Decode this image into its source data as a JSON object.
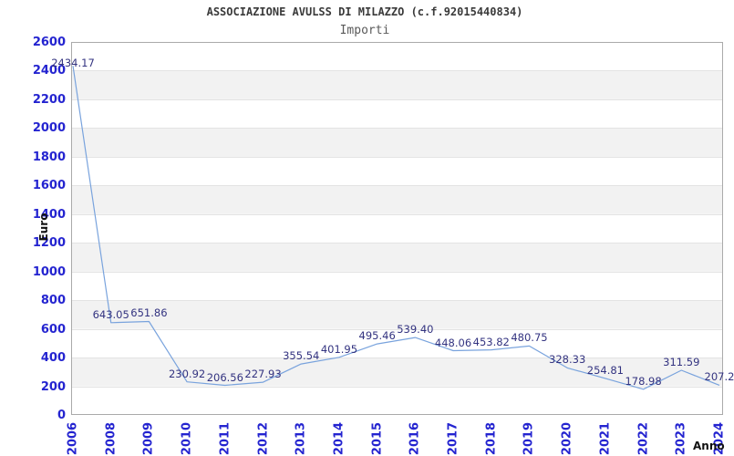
{
  "header": {
    "title": "ASSOCIAZIONE AVULSS DI MILAZZO (c.f.92015440834)",
    "subtitle": "Importi"
  },
  "chart_data": {
    "type": "line",
    "title": "ASSOCIAZIONE AVULSS DI MILAZZO (c.f.92015440834)",
    "subtitle": "Importi",
    "xlabel": "Anno",
    "ylabel": "Euro",
    "categories": [
      "2006",
      "2008",
      "2009",
      "2010",
      "2011",
      "2012",
      "2013",
      "2014",
      "2015",
      "2016",
      "2017",
      "2018",
      "2019",
      "2020",
      "2021",
      "2022",
      "2023",
      "2024"
    ],
    "values": [
      2434.17,
      643.05,
      651.86,
      230.92,
      206.56,
      227.93,
      355.54,
      401.95,
      495.46,
      539.4,
      448.06,
      453.82,
      480.75,
      328.33,
      254.81,
      178.98,
      311.59,
      207.2
    ],
    "point_labels": [
      "2434.17",
      "643.05",
      "651.86",
      "230.92",
      "206.56",
      "227.93",
      "355.54",
      "401.95",
      "495.46",
      "539.40",
      "448.06",
      "453.82",
      "480.75",
      "328.33",
      "254.81",
      "178.98",
      "311.59",
      "207.2"
    ],
    "yticks": [
      0,
      200,
      400,
      600,
      800,
      1000,
      1200,
      1400,
      1600,
      1800,
      2000,
      2200,
      2400,
      2600
    ],
    "ylim": [
      0,
      2600
    ],
    "ytick_step": 200,
    "grid": "horizontal gridlines with alternating gray bands",
    "legend": "none",
    "colors": {
      "line": "#79a3dd",
      "tick_label": "#2424d0",
      "point_label": "#333380",
      "band_gray": "#f2f2f2",
      "gridline": "#e3e3e3",
      "plot_border": "#aaaaaa",
      "title": "#3a3a3a",
      "subtitle": "#5a5a5a",
      "axis_label": "#111111",
      "background": "#ffffff"
    }
  }
}
